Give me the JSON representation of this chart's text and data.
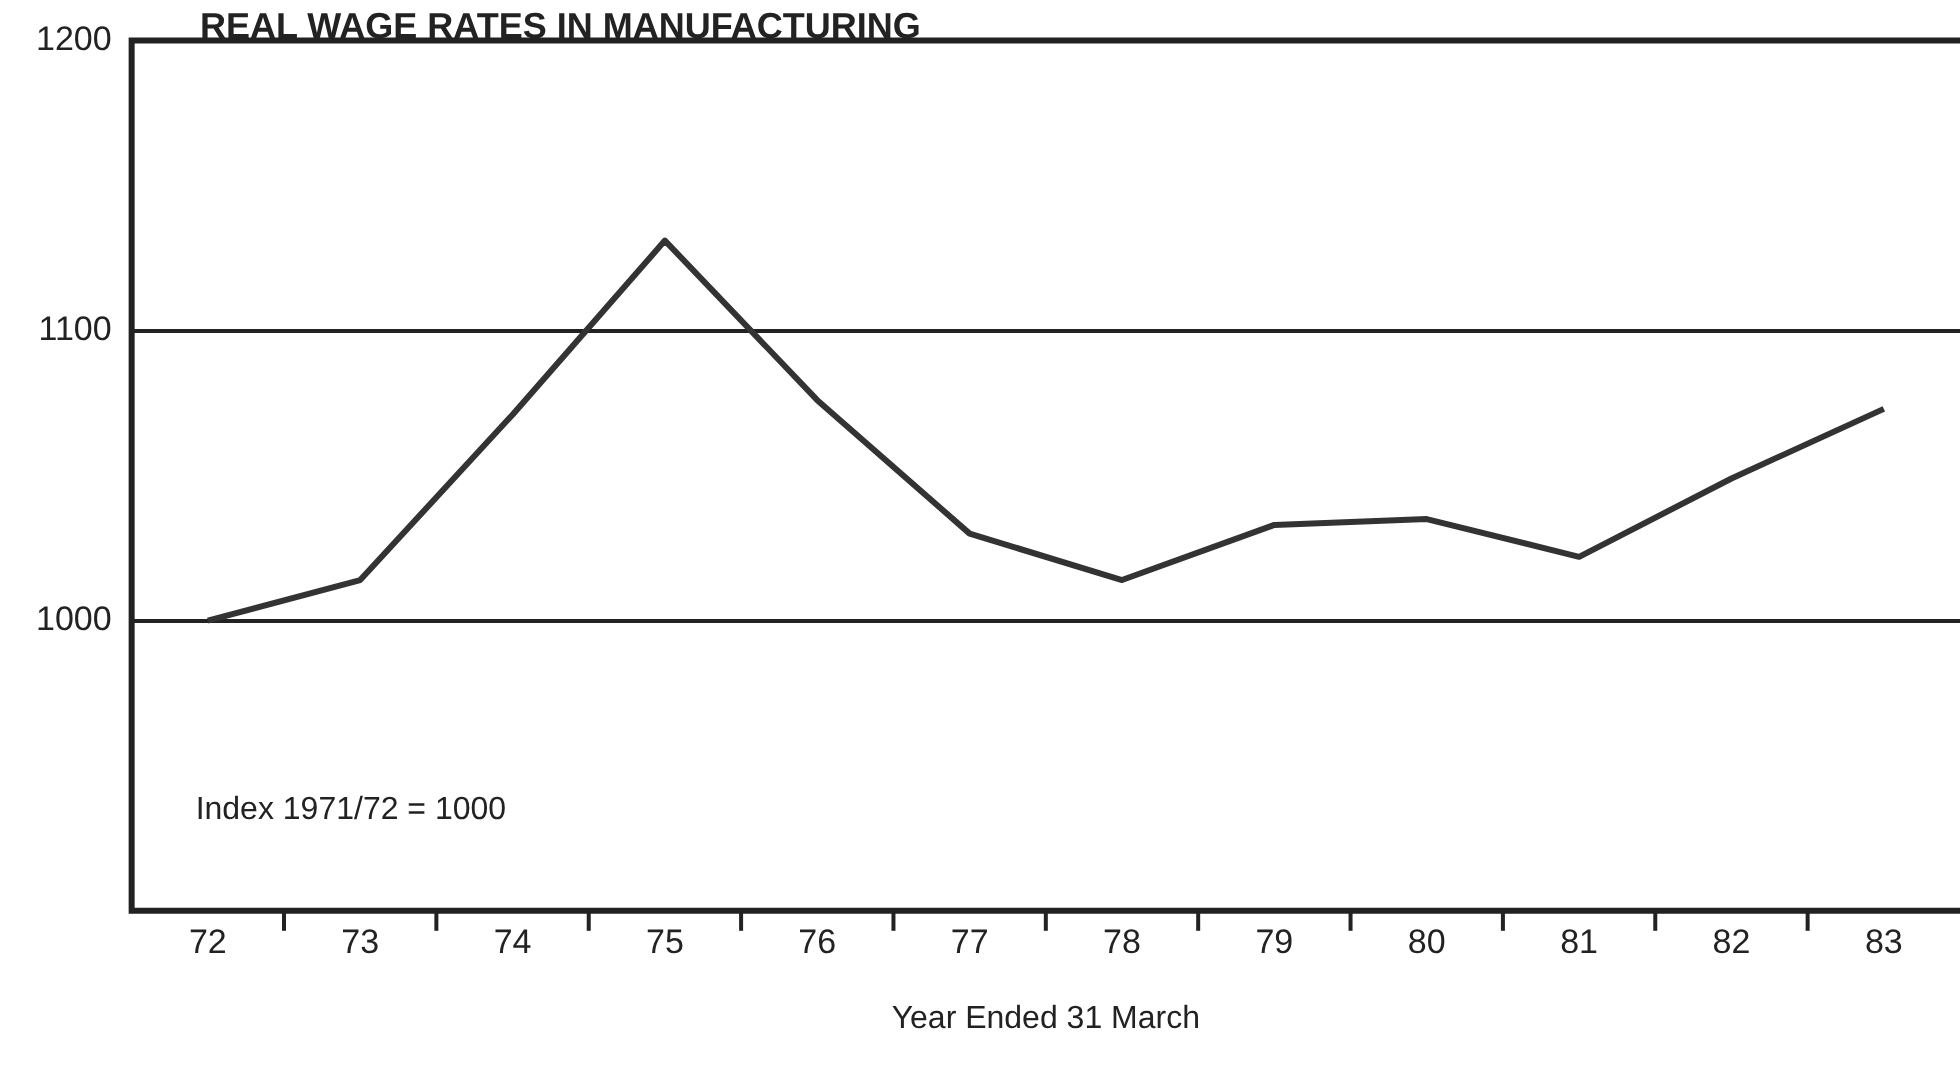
{
  "chart_data": {
    "type": "line",
    "title": "REAL WAGE RATES IN MANUFACTURING",
    "xlabel": "Year Ended 31 March",
    "categories": [
      "72",
      "73",
      "74",
      "75",
      "76",
      "77",
      "78",
      "79",
      "80",
      "81",
      "82",
      "83"
    ],
    "series": [
      {
        "color": "#333333",
        "values": [
          1000,
          1014,
          1071,
          1131,
          1076,
          1030,
          1014,
          1033,
          1035,
          1022,
          1049,
          1073
        ]
      }
    ],
    "ylim": [
      900,
      1200
    ],
    "yticks": [
      {
        "value": 900,
        "label": null
      },
      1000,
      1100,
      1200
    ],
    "grid": "y",
    "legend": false,
    "marker": "none",
    "line_style": "solid",
    "annotations": [
      "Index 1971/72 = 1000"
    ]
  }
}
